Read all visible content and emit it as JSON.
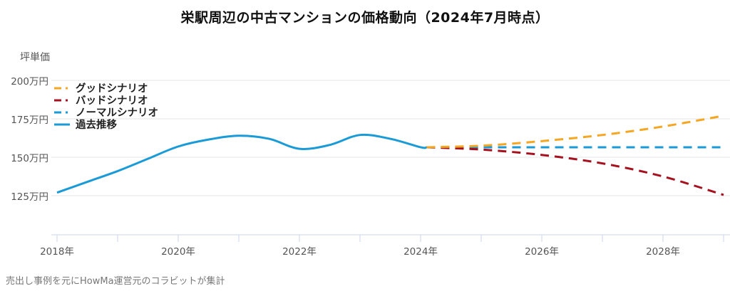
{
  "title": "栄駅周辺の中古マンションの価格動向（2024年7月時点）",
  "footer": "売出し事例を元にHowMa運営元のコラビットが集計",
  "colors": {
    "history": "#1a9ad6",
    "good": "#f5a623",
    "bad": "#a5111f",
    "normal": "#1a9ad6",
    "grid": "#e6e6e6",
    "axis": "#ccd6eb"
  },
  "legend": [
    {
      "key": "good",
      "label": "グッドシナリオ",
      "style": "dashed"
    },
    {
      "key": "bad",
      "label": "バッドシナリオ",
      "style": "dashed"
    },
    {
      "key": "normal",
      "label": "ノーマルシナリオ",
      "style": "dashed"
    },
    {
      "key": "history",
      "label": "過去推移",
      "style": "solid"
    }
  ],
  "chart_data": {
    "type": "line",
    "title": "栄駅周辺の中古マンションの価格動向（2024年7月時点）",
    "xlabel": "",
    "ylabel": "坪単価",
    "y_unit": "万円",
    "ylim": [
      100,
      200
    ],
    "xlim": [
      2018,
      2029
    ],
    "y_ticks": [
      "125万円",
      "150万円",
      "175万円",
      "200万円"
    ],
    "y_tick_values": [
      125,
      150,
      175,
      200
    ],
    "x_ticks": [
      "2018年",
      "2020年",
      "2022年",
      "2024年",
      "2026年",
      "2028年"
    ],
    "x_tick_values": [
      2018,
      2020,
      2022,
      2024,
      2026,
      2028
    ],
    "grid": true,
    "legend_position": "top-left inside",
    "series": [
      {
        "name": "過去推移",
        "key": "history",
        "style": "solid",
        "x": [
          2018.0,
          2018.5,
          2019.0,
          2019.5,
          2020.0,
          2020.5,
          2021.0,
          2021.5,
          2022.0,
          2022.5,
          2023.0,
          2023.5,
          2024.0,
          2024.1
        ],
        "values": [
          127,
          134,
          141,
          149,
          157,
          161.5,
          164,
          162,
          155.5,
          158,
          164.5,
          162,
          156.5,
          156.5
        ]
      },
      {
        "name": "グッドシナリオ",
        "key": "good",
        "style": "dashed",
        "x": [
          2024.1,
          2025,
          2026,
          2027,
          2028,
          2029
        ],
        "values": [
          156.5,
          157.5,
          160.5,
          164.5,
          170,
          177
        ]
      },
      {
        "name": "バッドシナリオ",
        "key": "bad",
        "style": "dashed",
        "x": [
          2024.1,
          2025,
          2026,
          2027,
          2028,
          2029
        ],
        "values": [
          156.5,
          155,
          151.5,
          146,
          137.5,
          125.5
        ]
      },
      {
        "name": "ノーマルシナリオ",
        "key": "normal",
        "style": "dashed",
        "x": [
          2024.1,
          2025,
          2026,
          2027,
          2028,
          2029
        ],
        "values": [
          156.5,
          156.5,
          156.5,
          156.5,
          156.5,
          156.5
        ]
      }
    ]
  }
}
